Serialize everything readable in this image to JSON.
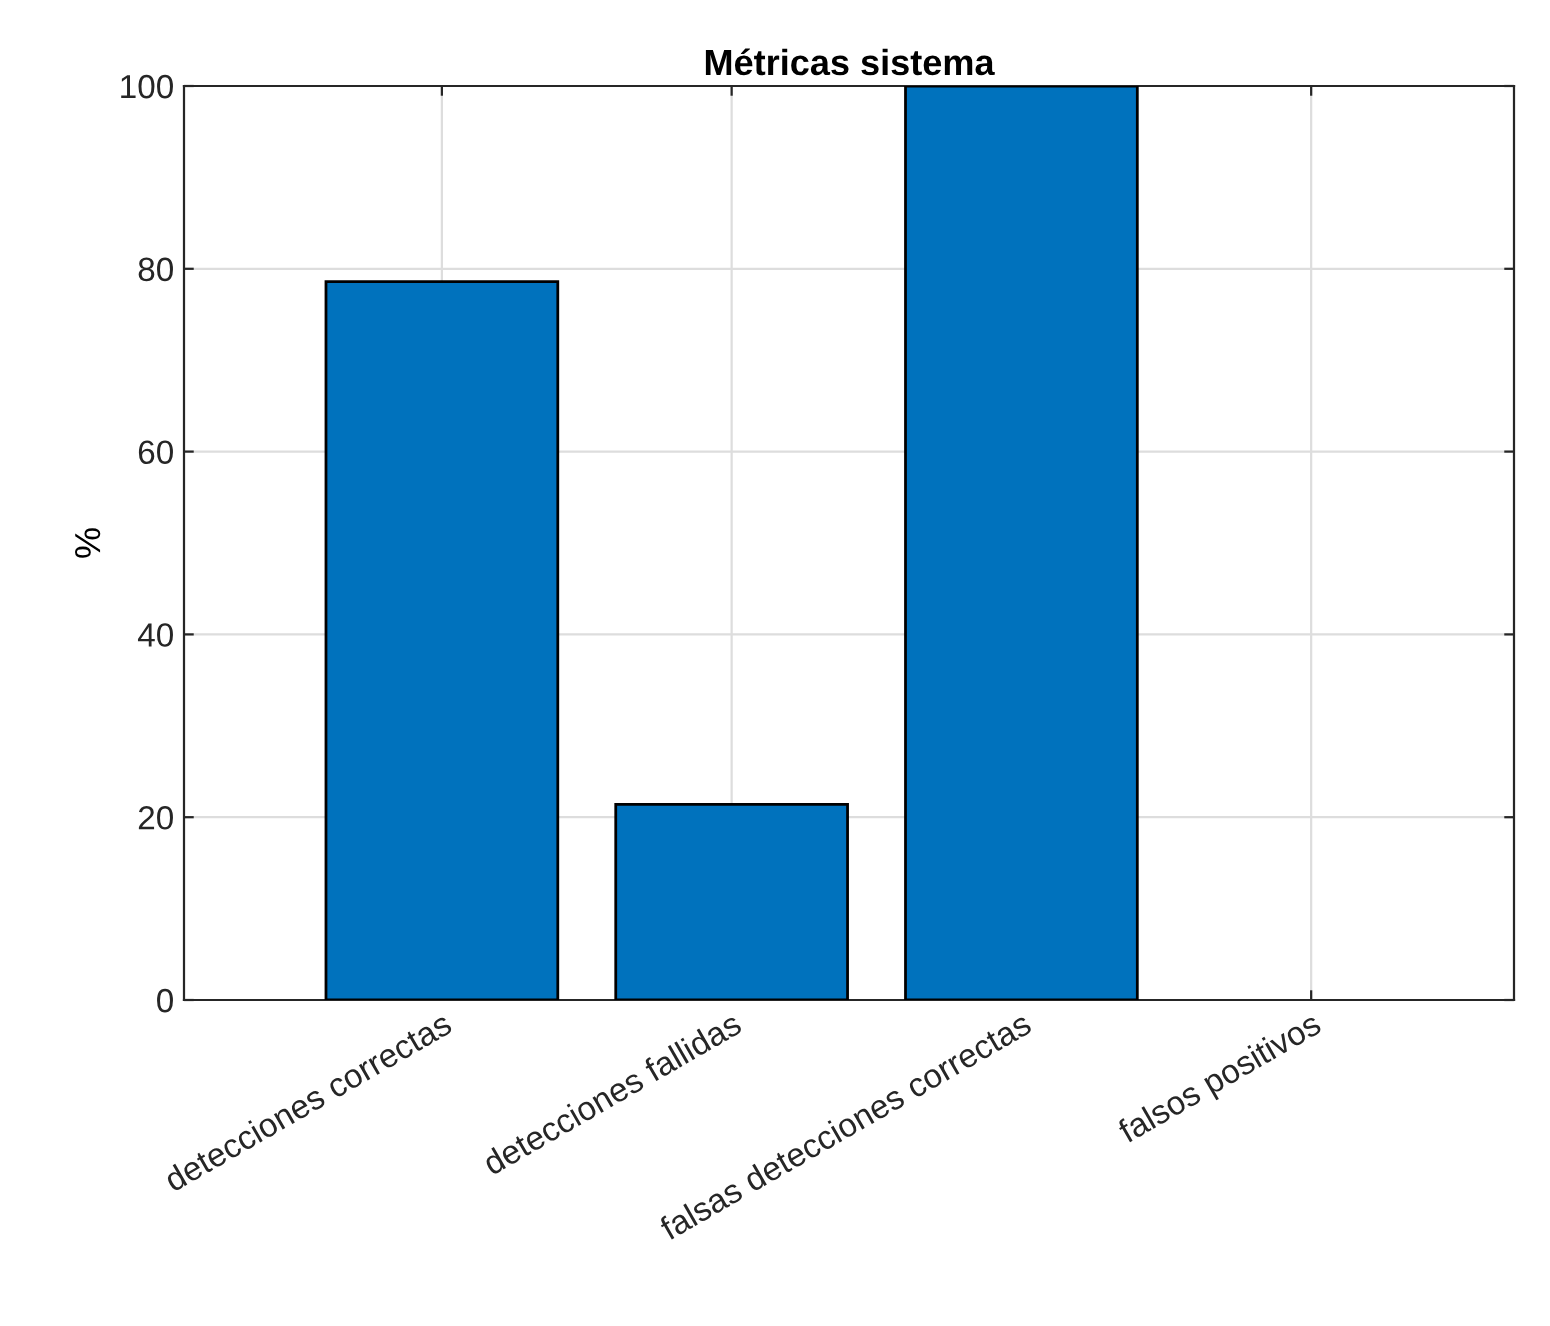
{
  "chart_data": {
    "type": "bar",
    "title": "Métricas sistema",
    "ylabel": "%",
    "categories": [
      "detecciones correctas",
      "detecciones fallidas",
      "falsas detecciones correctas",
      "falsos positivos"
    ],
    "values": [
      78.6,
      21.4,
      100,
      0
    ],
    "color": "#0072bd",
    "ylim": [
      0,
      100
    ],
    "yticks": [
      0,
      20,
      40,
      60,
      80,
      100
    ],
    "grid": true
  }
}
